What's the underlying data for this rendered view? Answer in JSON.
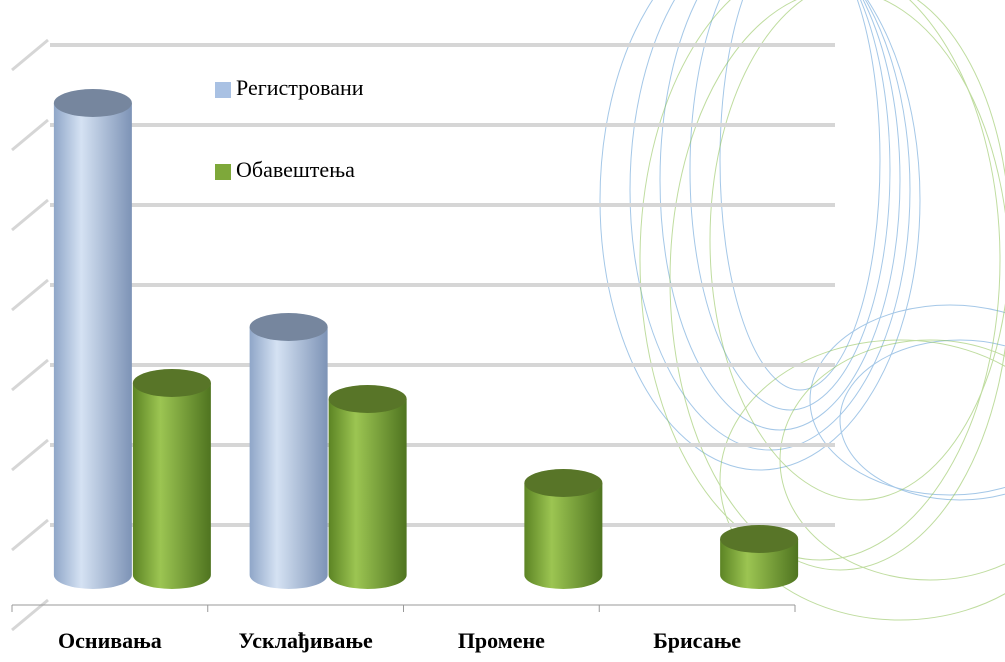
{
  "chart_data": {
    "type": "bar",
    "categories": [
      "Оснивања",
      "Усклађивање",
      "Промене",
      "Брисање"
    ],
    "series": [
      {
        "name": "Регистровани",
        "color": "#a9c1e3",
        "values": [
          5.9,
          3.1,
          null,
          null
        ]
      },
      {
        "name": "Обавештења",
        "color": "#7ea83a",
        "values": [
          2.4,
          2.2,
          1.15,
          0.45
        ]
      }
    ],
    "ylim": [
      0,
      7
    ],
    "yticks": [
      0,
      1,
      2,
      3,
      4,
      5,
      6,
      7
    ],
    "grid": true,
    "legend": "top-center"
  }
}
